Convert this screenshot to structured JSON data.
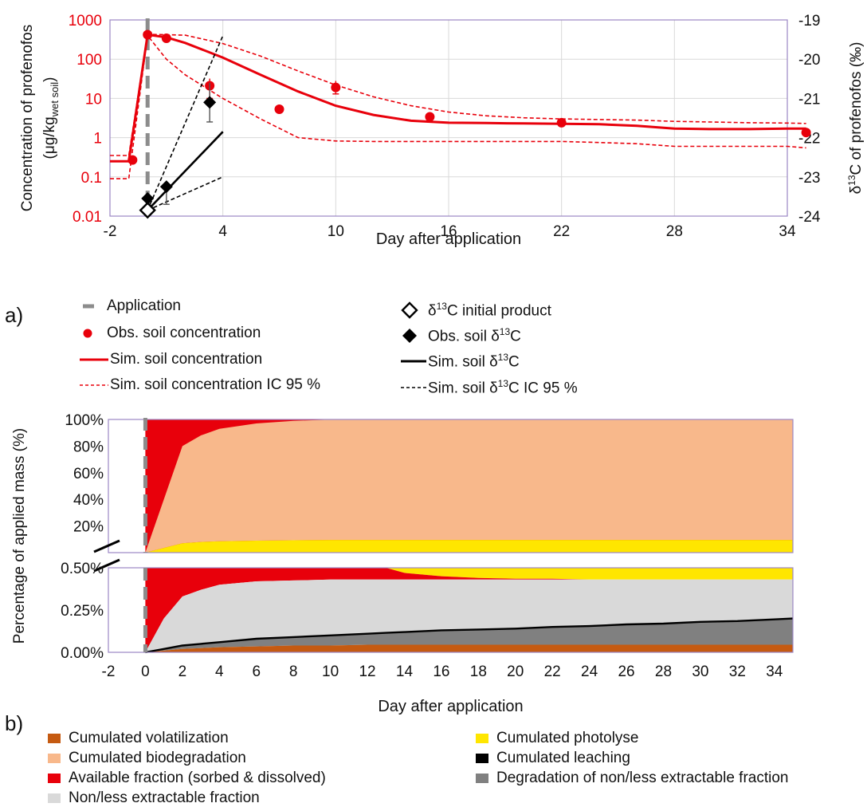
{
  "chart_data": [
    {
      "type": "line",
      "panel_label": "a)",
      "xlabel": "Day after application",
      "ylabel_left": "Concentration of profenofos",
      "ylabel_left_unit_pre": "(μg/kg",
      "ylabel_left_unit_sub": "wet soil",
      "ylabel_left_unit_post": ")",
      "ylabel_right_pre": "δ",
      "ylabel_right_sup": "13",
      "ylabel_right_post": "C of profenofos (‰)",
      "x_ticks": [
        -2,
        4,
        10,
        16,
        22,
        28,
        34
      ],
      "x_tick_labels": [
        "-2",
        "4",
        "10",
        "16",
        "22",
        "28",
        "34"
      ],
      "xlim": [
        -2,
        34
      ],
      "yscale_left": "log",
      "ylim_left": [
        0.01,
        1000
      ],
      "y_ticks_left": [
        0.01,
        0.1,
        1,
        10,
        100,
        1000
      ],
      "y_tick_labels_left": [
        "0.01",
        "0.1",
        "1",
        "10",
        "100",
        "1000"
      ],
      "ylim_right": [
        -24,
        -19
      ],
      "y_ticks_right": [
        -24,
        -23,
        -22,
        -21,
        -20,
        -19
      ],
      "y_tick_labels_right": [
        "-24",
        "-23",
        "-22",
        "-21",
        "-20",
        "-19"
      ],
      "grid": true,
      "application_day": 0,
      "colors": {
        "concentration": "#e8000b",
        "isotope": "#000000",
        "application": "#8c8c8c",
        "frame": "#9b87c4",
        "grid": "#d9d9d9"
      },
      "series": [
        {
          "name": "Obs. soil concentration",
          "kind": "points",
          "axis": "left",
          "x": [
            -0.8,
            0,
            1,
            3.3,
            7,
            10,
            15,
            22,
            35
          ],
          "y": [
            0.27,
            420,
            340,
            21,
            5.3,
            19,
            3.4,
            2.4,
            1.35
          ],
          "err_low": [
            null,
            null,
            null,
            10,
            null,
            13,
            null,
            null,
            null
          ],
          "err_high": [
            null,
            null,
            null,
            32,
            null,
            28,
            null,
            null,
            null
          ]
        },
        {
          "name": "Sim. soil concentration",
          "kind": "line",
          "axis": "left",
          "x": [
            -2,
            -1,
            0,
            1,
            2,
            4,
            6,
            8,
            10,
            12,
            14,
            16,
            18,
            20,
            22,
            24,
            26,
            28,
            30,
            32,
            34,
            35
          ],
          "y": [
            0.25,
            0.25,
            420,
            360,
            260,
            110,
            40,
            15,
            6.5,
            3.8,
            2.7,
            2.4,
            2.35,
            2.3,
            2.25,
            2.2,
            2.0,
            1.7,
            1.65,
            1.65,
            1.7,
            1.7
          ]
        },
        {
          "name": "Sim. soil concentration IC 95 %",
          "kind": "dashed",
          "axis": "left",
          "x": [
            -2,
            -1,
            0,
            2,
            4,
            6,
            8,
            10,
            12,
            14,
            16,
            18,
            20,
            22,
            24,
            26,
            28,
            30,
            32,
            34,
            35
          ],
          "y": [
            0.35,
            0.35,
            430,
            410,
            250,
            120,
            50,
            22,
            11,
            6.5,
            4.5,
            3.6,
            3.2,
            3.0,
            2.9,
            2.8,
            2.6,
            2.5,
            2.4,
            2.35,
            2.3
          ]
        },
        {
          "name": "",
          "kind": "dashed",
          "axis": "left",
          "x": [
            -2,
            -1,
            0,
            1,
            2,
            4,
            6,
            8,
            10,
            12,
            14,
            16,
            18,
            20,
            22,
            24,
            26,
            28,
            30,
            32,
            34,
            35
          ],
          "y": [
            0.09,
            0.09,
            400,
            100,
            40,
            10,
            3,
            1.0,
            0.82,
            0.8,
            0.8,
            0.8,
            0.8,
            0.8,
            0.8,
            0.75,
            0.7,
            0.6,
            0.6,
            0.6,
            0.6,
            0.55
          ]
        },
        {
          "name": "δ13C initial product",
          "kind": "points",
          "axis": "right",
          "x": [
            0
          ],
          "y": [
            -23.85
          ]
        },
        {
          "name": "Obs. soil δ13C",
          "kind": "points",
          "axis": "right",
          "x": [
            0,
            1,
            3.3
          ],
          "y": [
            -23.55,
            -23.25,
            -21.1
          ],
          "err_low": [
            null,
            -23.7,
            -21.6
          ],
          "err_high": [
            null,
            null,
            -20.6
          ]
        },
        {
          "name": "Sim. soil δ13C",
          "kind": "line",
          "axis": "right",
          "x": [
            0,
            4
          ],
          "y": [
            -23.85,
            -21.85
          ]
        },
        {
          "name": "Sim. soil δ13C IC 95 %",
          "kind": "dashed",
          "axis": "right",
          "x": [
            0,
            4
          ],
          "y": [
            -23.85,
            -19.4
          ]
        },
        {
          "name": "",
          "kind": "dashed",
          "axis": "right",
          "x": [
            0,
            4
          ],
          "y": [
            -23.85,
            -23.0
          ]
        }
      ],
      "legend": {
        "placement": "below",
        "items": [
          {
            "label": "Application",
            "marker": "dash-grey"
          },
          {
            "label": "Obs. soil concentration",
            "marker": "red-dot"
          },
          {
            "label": "Sim. soil concentration",
            "marker": "red-line"
          },
          {
            "label": "Sim. soil concentration IC 95 %",
            "marker": "red-dashed"
          },
          {
            "label_pre": "δ",
            "label_sup": "13",
            "label_post": "C initial product",
            "marker": "open-diamond"
          },
          {
            "label_pre": "Obs. soil δ",
            "label_sup": "13",
            "label_post": "C",
            "marker": "black-diamond"
          },
          {
            "label_pre": "Sim. soil δ",
            "label_sup": "13",
            "label_post": "C",
            "marker": "black-line"
          },
          {
            "label_pre": "Sim. soil δ",
            "label_sup": "13",
            "label_post": "C IC 95 %",
            "marker": "black-dashed"
          }
        ]
      }
    },
    {
      "type": "area",
      "panel_label": "b)",
      "xlabel": "Day after application",
      "ylabel": "Percentage of applied mass (%)",
      "x_ticks": [
        -2,
        0,
        2,
        4,
        6,
        8,
        10,
        12,
        14,
        16,
        18,
        20,
        22,
        24,
        26,
        28,
        30,
        32,
        34
      ],
      "x_tick_labels": [
        "-2",
        "0",
        "2",
        "4",
        "6",
        "8",
        "10",
        "12",
        "14",
        "16",
        "18",
        "20",
        "22",
        "24",
        "26",
        "28",
        "30",
        "32",
        "34"
      ],
      "xlim": [
        -2,
        35
      ],
      "broken_axis": true,
      "upper": {
        "ylim": [
          0,
          100
        ],
        "y_ticks": [
          20,
          40,
          60,
          80,
          100
        ],
        "y_tick_labels": [
          "20%",
          "40%",
          "60%",
          "80%",
          "100%"
        ]
      },
      "lower": {
        "ylim": [
          0,
          0.5
        ],
        "y_ticks": [
          0,
          0.25,
          0.5
        ],
        "y_tick_labels": [
          "0.00%",
          "0.25%",
          "0.50%"
        ]
      },
      "application_day": 0,
      "upper_series": {
        "x": [
          0,
          2,
          3,
          4,
          6,
          8,
          10,
          12,
          35
        ],
        "photolyse_top": [
          0,
          7,
          8,
          8.5,
          9,
          9.3,
          9.5,
          9.5,
          9.5
        ],
        "biodegradation_top": [
          0,
          80,
          88,
          93,
          97,
          99,
          99.8,
          100,
          100
        ]
      },
      "lower_series": {
        "x": [
          0,
          1,
          2,
          3,
          4,
          6,
          8,
          10,
          12,
          13,
          14,
          16,
          18,
          20,
          22,
          24,
          26,
          28,
          30,
          32,
          34,
          35
        ],
        "volatilization": [
          0,
          0.01,
          0.02,
          0.025,
          0.03,
          0.035,
          0.04,
          0.04,
          0.045,
          0.045,
          0.045,
          0.045,
          0.045,
          0.045,
          0.045,
          0.045,
          0.045,
          0.045,
          0.045,
          0.045,
          0.045,
          0.045
        ],
        "degradation_top": [
          0,
          0.02,
          0.04,
          0.05,
          0.06,
          0.08,
          0.09,
          0.1,
          0.11,
          0.115,
          0.12,
          0.13,
          0.135,
          0.14,
          0.15,
          0.155,
          0.165,
          0.17,
          0.18,
          0.185,
          0.195,
          0.2
        ],
        "leaching_width": 0.008,
        "nonextract_top": [
          0,
          0.2,
          0.33,
          0.37,
          0.4,
          0.42,
          0.425,
          0.43,
          0.43,
          0.43,
          0.43,
          0.43,
          0.43,
          0.43,
          0.43,
          0.43,
          0.43,
          0.43,
          0.43,
          0.43,
          0.43,
          0.43
        ],
        "available_top": [
          0.5,
          0.5,
          0.5,
          0.5,
          0.5,
          0.5,
          0.5,
          0.5,
          0.5,
          0.5,
          0.47,
          0.45,
          0.44,
          0.435,
          0.435,
          0.43,
          0.43,
          0.43,
          0.43,
          0.43,
          0.43,
          0.43
        ],
        "photolyse_top": [
          0.5,
          0.5,
          0.5,
          0.5,
          0.5,
          0.5,
          0.5,
          0.5,
          0.5,
          0.5,
          0.5,
          0.5,
          0.5,
          0.5,
          0.5,
          0.5,
          0.5,
          0.5,
          0.5,
          0.5,
          0.5,
          0.5
        ]
      },
      "colors": {
        "volatilization": "#c55a11",
        "biodegradation": "#f8b88b",
        "available": "#e8000b",
        "nonextract": "#d9d9d9",
        "photolyse": "#ffe600",
        "leaching": "#000000",
        "degradation": "#808080",
        "application": "#8c8c8c",
        "frame": "#9b87c4"
      },
      "legend": {
        "placement": "below",
        "items": [
          {
            "label": "Cumulated volatilization",
            "color": "#c55a11"
          },
          {
            "label": "Cumulated biodegradation",
            "color": "#f8b88b"
          },
          {
            "label": "Available fraction (sorbed & dissolved)",
            "color": "#e8000b"
          },
          {
            "label": "Non/less extractable fraction",
            "color": "#d9d9d9"
          },
          {
            "label": "Cumulated photolyse",
            "color": "#ffe600"
          },
          {
            "label": "Cumulated leaching",
            "color": "#000000"
          },
          {
            "label": "Degradation of non/less extractable fraction",
            "color": "#808080"
          }
        ]
      }
    }
  ]
}
